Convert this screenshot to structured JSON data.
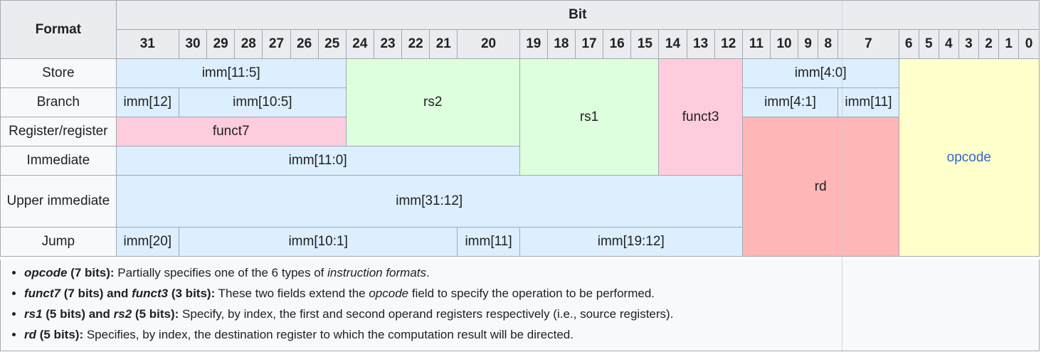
{
  "header": {
    "format_label": "Format",
    "bit_label": "Bit",
    "bits": [
      "31",
      "30",
      "29",
      "28",
      "27",
      "26",
      "25",
      "24",
      "23",
      "22",
      "21",
      "20",
      "19",
      "18",
      "17",
      "16",
      "15",
      "14",
      "13",
      "12",
      "11",
      "10",
      "9",
      "8",
      "7",
      "6",
      "5",
      "4",
      "3",
      "2",
      "1",
      "0"
    ]
  },
  "rows": {
    "store": {
      "format": "Store",
      "imm_hi": "imm[11:5]",
      "rs2": "rs2",
      "rs1": "rs1",
      "funct3": "funct3",
      "imm_lo": "imm[4:0]",
      "opcode": "opcode"
    },
    "branch": {
      "format": "Branch",
      "imm12": "imm[12]",
      "imm10_5": "imm[10:5]",
      "imm4_1": "imm[4:1]",
      "imm11": "imm[11]"
    },
    "register": {
      "format": "Register/register",
      "funct7": "funct7",
      "rd": "rd"
    },
    "immediate": {
      "format": "Immediate",
      "imm11_0": "imm[11:0]"
    },
    "upper": {
      "format": "Upper immediate",
      "imm31_12": "imm[31:12]"
    },
    "jump": {
      "format": "Jump",
      "imm20": "imm[20]",
      "imm10_1": "imm[10:1]",
      "imm11": "imm[11]",
      "imm19_12": "imm[19:12]"
    }
  },
  "notes": [
    {
      "term": "opcode",
      "bold_rest": " (7 bits):",
      "parts": [
        " Partially specifies one of the 6 types of ",
        "instruction formats",
        "."
      ]
    },
    {
      "term": "funct7",
      "bold_mid": " (7 bits) and ",
      "term2": "funct3",
      "bold_rest": " (3 bits):",
      "parts": [
        " These two fields extend the ",
        "opcode",
        " field to specify the operation to be performed."
      ]
    },
    {
      "term": "rs1",
      "bold_mid": " (5 bits) and ",
      "term2": "rs2",
      "bold_rest": " (5 bits):",
      "text": " Specify, by index, the first and second operand registers respectively (i.e., source registers)."
    },
    {
      "term": "rd",
      "bold_rest": " (5 bits):",
      "text": " Specifies, by index, the destination register to which the computation result will be directed."
    }
  ]
}
